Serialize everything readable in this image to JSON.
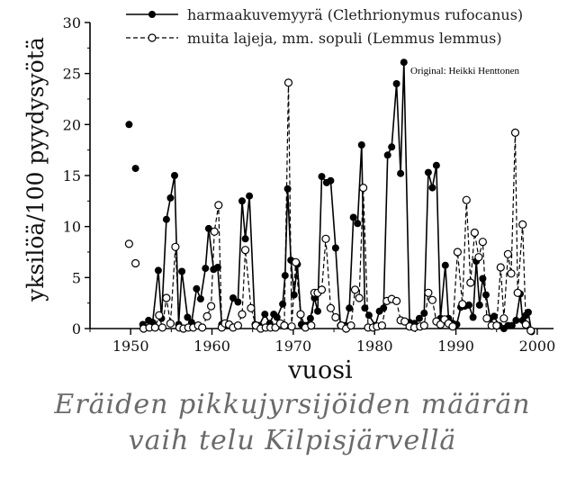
{
  "chart_data": {
    "type": "line",
    "xlabel": "vuosi",
    "ylabel": "yksilöä/100 pyydysyötä",
    "xlim": [
      1945,
      2002
    ],
    "ylim": [
      0,
      30
    ],
    "x_ticks": [
      1950,
      1960,
      1970,
      1980,
      1990,
      2000
    ],
    "y_ticks": [
      0,
      5,
      10,
      15,
      20,
      25,
      30
    ],
    "legend_position": "top",
    "series": [
      {
        "name": "harmaakuvemyyrä (Clethrionymus rufocanus)",
        "line": "solid",
        "marker": "filled-circle",
        "color": "#000000",
        "isolated": [
          [
            1949.8,
            20.0
          ],
          [
            1950.6,
            15.7
          ]
        ],
        "points": [
          [
            1951.5,
            0.4
          ],
          [
            1952.2,
            0.8
          ],
          [
            1952.7,
            0.6
          ],
          [
            1953.4,
            5.7
          ],
          [
            1953.8,
            1.0
          ],
          [
            1954.4,
            10.7
          ],
          [
            1954.9,
            12.8
          ],
          [
            1955.4,
            15.0
          ],
          [
            1955.9,
            0.4
          ],
          [
            1956.3,
            5.6
          ],
          [
            1957.0,
            1.1
          ],
          [
            1957.5,
            0.6
          ],
          [
            1958.1,
            3.9
          ],
          [
            1958.6,
            2.9
          ],
          [
            1959.2,
            5.9
          ],
          [
            1959.6,
            9.8
          ],
          [
            1960.2,
            5.8
          ],
          [
            1960.7,
            6.0
          ],
          [
            1961.2,
            0.4
          ],
          [
            1961.7,
            0.4
          ],
          [
            1962.6,
            3.0
          ],
          [
            1963.2,
            2.6
          ],
          [
            1963.7,
            12.5
          ],
          [
            1964.1,
            8.8
          ],
          [
            1964.6,
            13.0
          ],
          [
            1965.3,
            0.4
          ],
          [
            1965.8,
            0.3
          ],
          [
            1966.5,
            1.4
          ],
          [
            1967.1,
            0.5
          ],
          [
            1967.6,
            1.4
          ],
          [
            1968.0,
            1.1
          ],
          [
            1968.7,
            2.4
          ],
          [
            1969.0,
            5.2
          ],
          [
            1969.3,
            13.7
          ],
          [
            1969.7,
            6.7
          ],
          [
            1970.1,
            3.3
          ],
          [
            1970.5,
            6.3
          ],
          [
            1971.0,
            0.4
          ],
          [
            1971.5,
            0.3
          ],
          [
            1972.1,
            1.0
          ],
          [
            1972.6,
            3.0
          ],
          [
            1973.0,
            1.7
          ],
          [
            1973.5,
            14.9
          ],
          [
            1974.1,
            14.3
          ],
          [
            1974.6,
            14.5
          ],
          [
            1975.2,
            7.9
          ],
          [
            1975.8,
            0.3
          ],
          [
            1976.4,
            0.3
          ],
          [
            1976.9,
            2.0
          ],
          [
            1977.4,
            10.9
          ],
          [
            1977.9,
            10.3
          ],
          [
            1978.4,
            18.0
          ],
          [
            1978.8,
            2.0
          ],
          [
            1979.3,
            1.3
          ],
          [
            1980.1,
            0.3
          ],
          [
            1980.6,
            1.7
          ],
          [
            1981.1,
            2.0
          ],
          [
            1981.6,
            17.0
          ],
          [
            1982.1,
            17.8
          ],
          [
            1982.7,
            24.0
          ],
          [
            1983.2,
            15.2
          ],
          [
            1983.6,
            26.1
          ],
          [
            1984.3,
            0.6
          ],
          [
            1984.9,
            0.5
          ],
          [
            1985.5,
            1.0
          ],
          [
            1986.1,
            1.5
          ],
          [
            1986.6,
            15.3
          ],
          [
            1987.1,
            13.8
          ],
          [
            1987.6,
            16.0
          ],
          [
            1988.1,
            1.0
          ],
          [
            1988.7,
            6.2
          ],
          [
            1989.1,
            1.0
          ],
          [
            1989.6,
            0.5
          ],
          [
            1990.1,
            0.4
          ],
          [
            1990.6,
            2.1
          ],
          [
            1991.1,
            2.2
          ],
          [
            1991.6,
            2.3
          ],
          [
            1992.1,
            1.1
          ],
          [
            1992.5,
            6.6
          ],
          [
            1992.9,
            2.3
          ],
          [
            1993.3,
            4.9
          ],
          [
            1993.7,
            3.3
          ],
          [
            1994.2,
            1.0
          ],
          [
            1994.7,
            1.2
          ],
          [
            1995.3,
            0.3
          ],
          [
            1995.9,
            0.0
          ],
          [
            1996.4,
            0.3
          ],
          [
            1996.9,
            0.3
          ],
          [
            1997.4,
            0.8
          ],
          [
            1997.9,
            3.4
          ],
          [
            1998.2,
            0.8
          ],
          [
            1998.6,
            1.3
          ],
          [
            1998.9,
            1.6
          ],
          [
            1999.3,
            -0.3
          ]
        ]
      },
      {
        "name": "muita lajeja, mm. sopuli (Lemmus lemmus)",
        "line": "dashed",
        "marker": "open-circle",
        "color": "#000000",
        "isolated": [
          [
            1949.8,
            8.3
          ],
          [
            1950.6,
            6.4
          ]
        ],
        "points": [
          [
            1951.6,
            0.0
          ],
          [
            1952.3,
            0.1
          ],
          [
            1953.0,
            0.1
          ],
          [
            1953.5,
            1.3
          ],
          [
            1953.9,
            0.1
          ],
          [
            1954.4,
            3.0
          ],
          [
            1954.9,
            0.5
          ],
          [
            1955.5,
            8.0
          ],
          [
            1956.0,
            0.1
          ],
          [
            1956.5,
            0.0
          ],
          [
            1957.1,
            0.1
          ],
          [
            1957.7,
            0.1
          ],
          [
            1958.3,
            0.3
          ],
          [
            1958.8,
            0.1
          ],
          [
            1959.4,
            1.2
          ],
          [
            1959.9,
            2.2
          ],
          [
            1960.3,
            9.5
          ],
          [
            1960.8,
            12.1
          ],
          [
            1961.2,
            0.1
          ],
          [
            1961.6,
            0.5
          ],
          [
            1962.1,
            0.4
          ],
          [
            1962.6,
            0.1
          ],
          [
            1963.2,
            0.3
          ],
          [
            1963.7,
            1.4
          ],
          [
            1964.1,
            7.7
          ],
          [
            1964.8,
            2.0
          ],
          [
            1965.4,
            0.3
          ],
          [
            1966.0,
            0.0
          ],
          [
            1966.6,
            0.1
          ],
          [
            1967.2,
            0.1
          ],
          [
            1967.8,
            0.1
          ],
          [
            1968.4,
            0.5
          ],
          [
            1968.9,
            0.3
          ],
          [
            1969.4,
            24.1
          ],
          [
            1969.8,
            0.2
          ],
          [
            1970.3,
            6.5
          ],
          [
            1970.9,
            1.4
          ],
          [
            1971.5,
            0.1
          ],
          [
            1972.2,
            0.3
          ],
          [
            1972.6,
            3.5
          ],
          [
            1973.0,
            3.5
          ],
          [
            1973.5,
            3.8
          ],
          [
            1974.0,
            8.8
          ],
          [
            1974.6,
            2.0
          ],
          [
            1975.2,
            1.1
          ],
          [
            1975.9,
            0.3
          ],
          [
            1976.5,
            0.0
          ],
          [
            1977.1,
            0.3
          ],
          [
            1977.6,
            3.8
          ],
          [
            1978.1,
            3.0
          ],
          [
            1978.6,
            13.8
          ],
          [
            1979.2,
            0.1
          ],
          [
            1979.8,
            0.1
          ],
          [
            1980.3,
            0.2
          ],
          [
            1980.9,
            0.3
          ],
          [
            1981.5,
            2.7
          ],
          [
            1982.1,
            2.9
          ],
          [
            1982.7,
            2.7
          ],
          [
            1983.2,
            0.8
          ],
          [
            1983.7,
            0.7
          ],
          [
            1984.3,
            0.2
          ],
          [
            1984.9,
            0.1
          ],
          [
            1985.6,
            0.2
          ],
          [
            1986.1,
            0.3
          ],
          [
            1986.6,
            3.5
          ],
          [
            1987.1,
            2.8
          ],
          [
            1987.6,
            0.7
          ],
          [
            1988.1,
            0.4
          ],
          [
            1988.6,
            0.9
          ],
          [
            1989.1,
            0.5
          ],
          [
            1989.6,
            0.2
          ],
          [
            1990.2,
            7.5
          ],
          [
            1990.8,
            2.4
          ],
          [
            1991.3,
            12.6
          ],
          [
            1991.8,
            4.5
          ],
          [
            1992.3,
            9.4
          ],
          [
            1992.8,
            7.0
          ],
          [
            1993.3,
            8.5
          ],
          [
            1993.8,
            1.0
          ],
          [
            1994.4,
            0.3
          ],
          [
            1995.0,
            0.3
          ],
          [
            1995.5,
            6.0
          ],
          [
            1995.9,
            1.0
          ],
          [
            1996.4,
            7.3
          ],
          [
            1996.8,
            5.4
          ],
          [
            1997.3,
            19.2
          ],
          [
            1997.6,
            3.5
          ],
          [
            1998.2,
            10.2
          ],
          [
            1998.6,
            0.4
          ],
          [
            1999.2,
            -0.2
          ]
        ]
      }
    ]
  },
  "credit": "Original: Heikki Henttonen",
  "caption": {
    "line1": "Eräiden pikkujyrsijöiden määrän",
    "line2": "vaih telu Kilpisjärvellä"
  }
}
